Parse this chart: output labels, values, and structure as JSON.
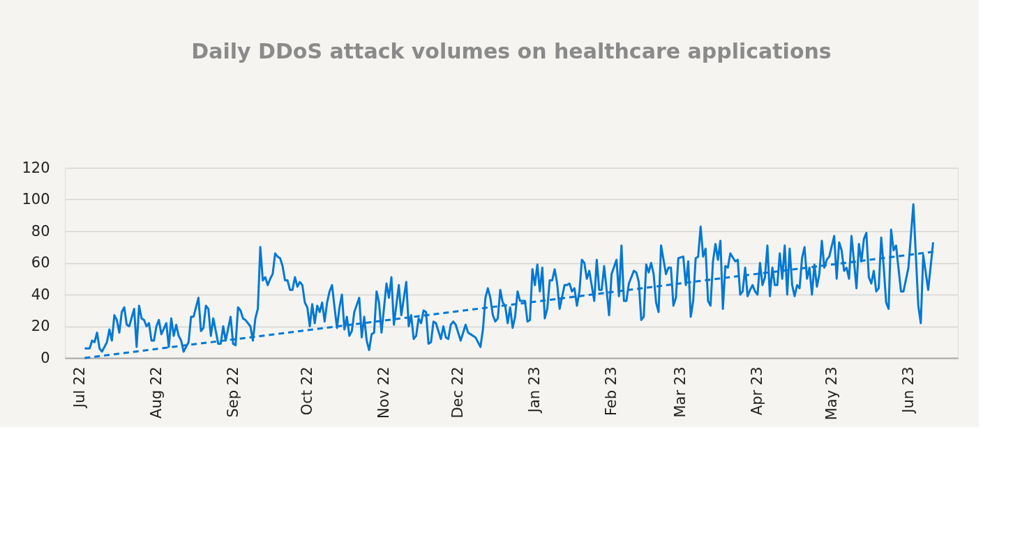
{
  "chart_data": {
    "type": "line",
    "title": "Daily DDoS attack volumes on healthcare applications",
    "xlim": [
      "2022-06-25",
      "2023-06-21"
    ],
    "xticks": [
      {
        "value": "2022-07-01",
        "label": "Jul 22"
      },
      {
        "value": "2022-08-01",
        "label": "Aug 22"
      },
      {
        "value": "2022-09-01",
        "label": "Sep 22"
      },
      {
        "value": "2022-10-01",
        "label": "Oct 22"
      },
      {
        "value": "2022-11-01",
        "label": "Nov 22"
      },
      {
        "value": "2022-12-01",
        "label": "Dec 22"
      },
      {
        "value": "2023-01-01",
        "label": "Jan 23"
      },
      {
        "value": "2023-02-01",
        "label": "Feb 23"
      },
      {
        "value": "2023-03-01",
        "label": "Mar 23"
      },
      {
        "value": "2023-04-01",
        "label": "Apr 23"
      },
      {
        "value": "2023-05-01",
        "label": "May 23"
      },
      {
        "value": "2023-06-01",
        "label": "Jun 23"
      }
    ],
    "ylim": [
      0,
      120
    ],
    "yticks": [
      0,
      20,
      40,
      60,
      80,
      100,
      120
    ],
    "grid": "y",
    "legend": false,
    "marker": "none",
    "series": [
      {
        "color": "#0078d4",
        "line_style": "solid",
        "x": [
          "2022-07-03",
          "2022-07-05",
          "2022-07-06",
          "2022-07-07",
          "2022-07-08",
          "2022-07-09",
          "2022-07-10",
          "2022-07-12",
          "2022-07-13",
          "2022-07-14",
          "2022-07-15",
          "2022-07-16",
          "2022-07-17",
          "2022-07-18",
          "2022-07-19",
          "2022-07-20",
          "2022-07-21",
          "2022-07-23",
          "2022-07-24",
          "2022-07-25",
          "2022-07-26",
          "2022-07-27",
          "2022-07-28",
          "2022-07-29",
          "2022-07-30",
          "2022-07-31",
          "2022-08-01",
          "2022-08-02",
          "2022-08-03",
          "2022-08-05",
          "2022-08-06",
          "2022-08-07",
          "2022-08-08",
          "2022-08-09",
          "2022-08-10",
          "2022-08-11",
          "2022-08-12",
          "2022-08-14",
          "2022-08-15",
          "2022-08-16",
          "2022-08-18",
          "2022-08-19",
          "2022-08-20",
          "2022-08-21",
          "2022-08-22",
          "2022-08-23",
          "2022-08-24",
          "2022-08-26",
          "2022-08-27",
          "2022-08-28",
          "2022-08-29",
          "2022-08-31",
          "2022-09-01",
          "2022-09-02",
          "2022-09-03",
          "2022-09-04",
          "2022-09-05",
          "2022-09-06",
          "2022-09-08",
          "2022-09-09",
          "2022-09-10",
          "2022-09-11",
          "2022-09-12",
          "2022-09-13",
          "2022-09-14",
          "2022-09-15",
          "2022-09-16",
          "2022-09-17",
          "2022-09-18",
          "2022-09-19",
          "2022-09-20",
          "2022-09-21",
          "2022-09-22",
          "2022-09-23",
          "2022-09-24",
          "2022-09-25",
          "2022-09-26",
          "2022-09-27",
          "2022-09-28",
          "2022-09-29",
          "2022-09-30",
          "2022-10-01",
          "2022-10-02",
          "2022-10-03",
          "2022-10-04",
          "2022-10-05",
          "2022-10-06",
          "2022-10-07",
          "2022-10-08",
          "2022-10-09",
          "2022-10-10",
          "2022-10-11",
          "2022-10-12",
          "2022-10-13",
          "2022-10-14",
          "2022-10-15",
          "2022-10-16",
          "2022-10-17",
          "2022-10-18",
          "2022-10-19",
          "2022-10-20",
          "2022-10-22",
          "2022-10-23",
          "2022-10-24",
          "2022-10-25",
          "2022-10-26",
          "2022-10-27",
          "2022-10-28",
          "2022-10-29",
          "2022-10-30",
          "2022-10-31",
          "2022-11-02",
          "2022-11-03",
          "2022-11-04",
          "2022-11-05",
          "2022-11-07",
          "2022-11-08",
          "2022-11-10",
          "2022-11-11",
          "2022-11-12",
          "2022-11-13",
          "2022-11-14",
          "2022-11-15",
          "2022-11-16",
          "2022-11-17",
          "2022-11-18",
          "2022-11-19",
          "2022-11-20",
          "2022-11-21",
          "2022-11-22",
          "2022-11-24",
          "2022-11-25",
          "2022-11-26",
          "2022-11-27",
          "2022-11-28",
          "2022-11-29",
          "2022-11-30",
          "2022-12-02",
          "2022-12-04",
          "2022-12-05",
          "2022-12-06",
          "2022-12-08",
          "2022-12-10",
          "2022-12-11",
          "2022-12-12",
          "2022-12-13",
          "2022-12-14",
          "2022-12-15",
          "2022-12-16",
          "2022-12-17",
          "2022-12-18",
          "2022-12-19",
          "2022-12-20",
          "2022-12-21",
          "2022-12-22",
          "2022-12-23",
          "2022-12-24",
          "2022-12-25",
          "2022-12-26",
          "2022-12-28",
          "2022-12-29",
          "2022-12-30",
          "2022-12-31",
          "2023-01-01",
          "2023-01-02",
          "2023-01-03",
          "2023-01-04",
          "2023-01-05",
          "2023-01-06",
          "2023-01-07",
          "2023-01-08",
          "2023-01-09",
          "2023-01-10",
          "2023-01-11",
          "2023-01-13",
          "2023-01-14",
          "2023-01-15",
          "2023-01-16",
          "2023-01-17",
          "2023-01-18",
          "2023-01-19",
          "2023-01-20",
          "2023-01-21",
          "2023-01-22",
          "2023-01-23",
          "2023-01-25",
          "2023-01-26",
          "2023-01-27",
          "2023-01-28",
          "2023-01-29",
          "2023-01-30",
          "2023-01-31",
          "2023-02-01",
          "2023-02-03",
          "2023-02-04",
          "2023-02-05",
          "2023-02-06",
          "2023-02-07",
          "2023-02-08",
          "2023-02-10",
          "2023-02-11",
          "2023-02-12",
          "2023-02-13",
          "2023-02-14",
          "2023-02-15",
          "2023-02-16",
          "2023-02-17",
          "2023-02-18",
          "2023-02-19",
          "2023-02-20",
          "2023-02-21",
          "2023-02-23",
          "2023-02-24",
          "2023-02-25",
          "2023-02-26",
          "2023-02-27",
          "2023-02-28",
          "2023-03-02",
          "2023-03-03",
          "2023-03-04",
          "2023-03-05",
          "2023-03-06",
          "2023-03-07",
          "2023-03-08",
          "2023-03-09",
          "2023-03-10",
          "2023-03-11",
          "2023-03-12",
          "2023-03-13",
          "2023-03-14",
          "2023-03-15",
          "2023-03-16",
          "2023-03-17",
          "2023-03-18",
          "2023-03-19",
          "2023-03-20",
          "2023-03-21",
          "2023-03-23",
          "2023-03-24",
          "2023-03-25",
          "2023-03-26",
          "2023-03-27",
          "2023-03-28",
          "2023-03-29",
          "2023-03-30",
          "2023-03-31",
          "2023-04-01",
          "2023-04-02",
          "2023-04-03",
          "2023-04-04",
          "2023-04-05",
          "2023-04-06",
          "2023-04-07",
          "2023-04-08",
          "2023-04-09",
          "2023-04-10",
          "2023-04-11",
          "2023-04-12",
          "2023-04-13",
          "2023-04-14",
          "2023-04-15",
          "2023-04-16",
          "2023-04-17",
          "2023-04-18",
          "2023-04-19",
          "2023-04-20",
          "2023-04-21",
          "2023-04-22",
          "2023-04-23",
          "2023-04-24",
          "2023-04-25",
          "2023-04-26",
          "2023-04-27",
          "2023-04-28",
          "2023-04-29",
          "2023-04-30",
          "2023-05-02",
          "2023-05-03",
          "2023-05-04",
          "2023-05-05",
          "2023-05-06",
          "2023-05-07",
          "2023-05-08",
          "2023-05-09",
          "2023-05-10",
          "2023-05-11",
          "2023-05-12",
          "2023-05-13",
          "2023-05-14",
          "2023-05-15",
          "2023-05-16",
          "2023-05-17",
          "2023-05-18",
          "2023-05-19",
          "2023-05-20",
          "2023-05-21",
          "2023-05-22",
          "2023-05-23",
          "2023-05-24",
          "2023-05-25",
          "2023-05-26",
          "2023-05-27",
          "2023-05-29",
          "2023-05-30",
          "2023-06-01",
          "2023-06-03",
          "2023-06-05",
          "2023-06-06",
          "2023-06-07",
          "2023-06-09",
          "2023-06-11"
        ],
        "values": [
          6,
          6,
          11,
          10,
          16,
          6,
          4,
          10,
          18,
          11,
          27,
          24,
          16,
          29,
          32,
          21,
          20,
          31,
          7,
          33,
          25,
          24,
          20,
          22,
          11,
          11,
          20,
          24,
          15,
          22,
          7,
          25,
          14,
          21,
          14,
          11,
          4,
          10,
          26,
          26,
          38,
          17,
          19,
          33,
          31,
          14,
          25,
          9,
          9,
          20,
          11,
          26,
          9,
          8,
          32,
          30,
          25,
          24,
          20,
          11,
          25,
          31,
          70,
          49,
          51,
          46,
          50,
          53,
          66,
          64,
          63,
          58,
          49,
          49,
          43,
          43,
          51,
          45,
          48,
          46,
          35,
          32,
          20,
          34,
          22,
          33,
          29,
          35,
          23,
          35,
          42,
          46,
          32,
          19,
          32,
          40,
          18,
          26,
          14,
          17,
          29,
          38,
          13,
          26,
          11,
          5,
          15,
          16,
          42,
          35,
          16,
          47,
          38,
          51,
          21,
          46,
          27,
          48,
          20,
          27,
          12,
          14,
          25,
          22,
          30,
          29,
          9,
          10,
          23,
          22,
          12,
          20,
          13,
          12,
          21,
          23,
          21,
          11,
          21,
          16,
          15,
          13,
          7,
          18,
          38,
          44,
          38,
          27,
          23,
          25,
          43,
          35,
          33,
          22,
          32,
          19,
          26,
          42,
          36,
          36,
          23,
          24,
          56,
          46,
          59,
          42,
          57,
          25,
          31,
          49,
          49,
          56,
          47,
          31,
          46,
          46,
          47,
          42,
          44,
          33,
          42,
          62,
          60,
          50,
          55,
          36,
          62,
          43,
          43,
          58,
          43,
          27,
          53,
          62,
          39,
          71,
          36,
          36,
          47,
          55,
          54,
          48,
          24,
          26,
          59,
          54,
          60,
          53,
          35,
          29,
          71,
          53,
          57,
          57,
          33,
          38,
          63,
          64,
          46,
          61,
          26,
          36,
          63,
          64,
          83,
          64,
          69,
          36,
          33,
          61,
          72,
          62,
          74,
          31,
          58,
          57,
          66,
          61,
          62,
          40,
          42,
          57,
          39,
          43,
          46,
          42,
          40,
          60,
          46,
          51,
          71,
          39,
          57,
          46,
          46,
          66,
          50,
          71,
          40,
          69,
          46,
          39,
          46,
          44,
          63,
          70,
          50,
          57,
          40,
          59,
          45,
          53,
          74,
          57,
          62,
          64,
          77,
          50,
          73,
          68,
          55,
          57,
          50,
          77,
          61,
          44,
          72,
          61,
          75,
          79,
          51,
          47,
          55,
          42,
          44,
          76,
          58,
          35,
          31,
          81,
          68,
          71,
          42,
          42,
          57,
          97,
          33,
          22,
          65,
          43,
          73
        ]
      },
      {
        "type": "line",
        "color": "#0078d4",
        "line_style": "dashed",
        "x": [
          "2022-07-03",
          "2023-06-11"
        ],
        "values": [
          0,
          67
        ]
      }
    ]
  }
}
